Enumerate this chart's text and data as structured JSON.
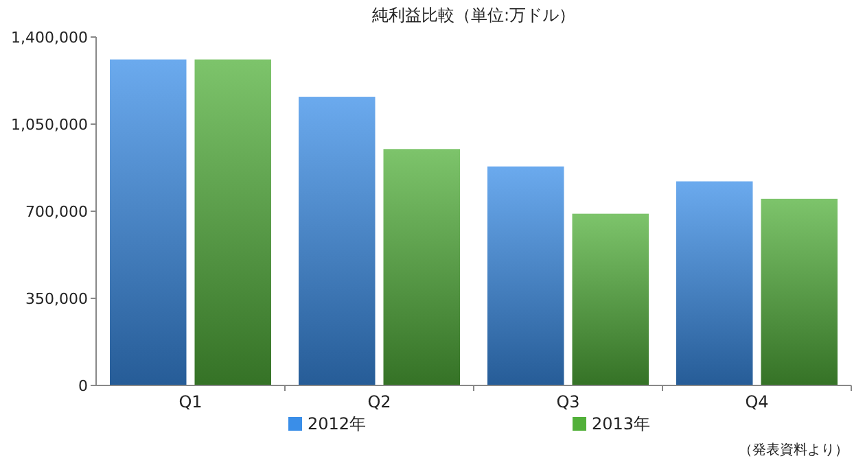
{
  "chart_data": {
    "type": "bar",
    "title": "純利益比較（単位:万ドル）",
    "categories": [
      "Q1",
      "Q2",
      "Q3",
      "Q4"
    ],
    "series": [
      {
        "name": "2012年",
        "color": "#3a8ee8",
        "values": [
          1310000,
          1160000,
          880000,
          820000
        ]
      },
      {
        "name": "2013年",
        "color": "#52b03a",
        "values": [
          1310000,
          950000,
          690000,
          750000
        ]
      }
    ],
    "ylim": [
      0,
      1400000
    ],
    "yticks": [
      0,
      {
        "value": 350000,
        "label": "350,000"
      },
      {
        "value": 700000,
        "label": "700,000"
      },
      {
        "value": 1050000,
        "label": "1,050,000"
      },
      {
        "value": 1400000,
        "label": "1,400,000"
      }
    ],
    "legend": "bottom",
    "annotations": [
      "（発表資料より）"
    ]
  }
}
